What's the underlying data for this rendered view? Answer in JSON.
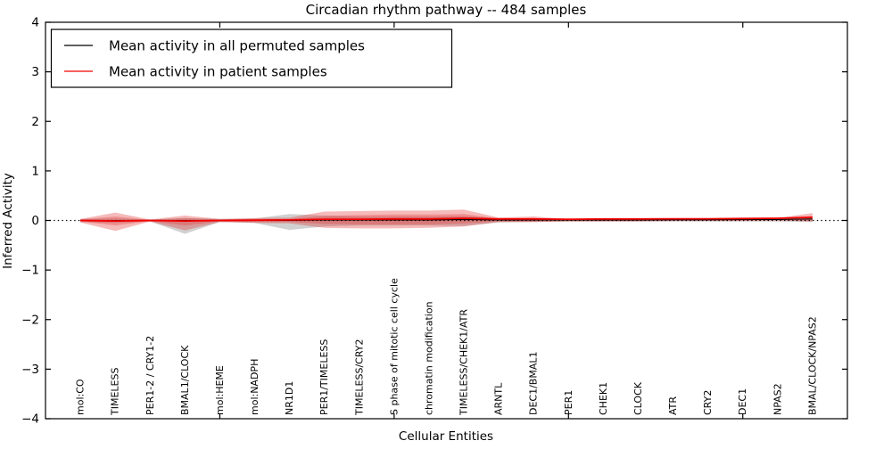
{
  "chart_data": {
    "type": "line",
    "title": "Circadian rhythm pathway -- 484 samples",
    "xlabel": "Cellular Entities",
    "ylabel": "Inferred Activity",
    "ylim": [
      -4,
      4
    ],
    "yticks": [
      -4,
      -3,
      -2,
      -1,
      0,
      1,
      2,
      3,
      4
    ],
    "xticks_numeric": [
      5,
      10,
      15,
      20
    ],
    "grid": false,
    "legend": {
      "position": "upper left",
      "items": [
        {
          "label": "Mean activity in all permuted samples",
          "color": "#000000"
        },
        {
          "label": "Mean activity in patient samples",
          "color": "#f20000"
        }
      ]
    },
    "categories": [
      "mol:CO",
      "TIMELESS",
      "PER1-2 / CRY1-2",
      "BMAL1/CLOCK",
      "mol:HEME",
      "mol:NADPH",
      "NR1D1",
      "PER1/TIMELESS",
      "TIMELESS/CRY2",
      "S phase of mitotic cell cycle",
      "chromatin modification",
      "TIMELESS/CHEK1/ATR",
      "ARNTL",
      "DEC1/BMAL1",
      "PER1",
      "CHEK1",
      "CLOCK",
      "ATR",
      "CRY2",
      "DEC1",
      "NPAS2",
      "BMAL/CLOCK/NPAS2"
    ],
    "series": [
      {
        "name": "Mean activity in all permuted samples",
        "color": "#000000",
        "width": 1.1,
        "values": [
          0,
          0,
          0,
          0,
          0,
          0,
          0,
          0.01,
          0.01,
          0.01,
          0.01,
          0.02,
          0.01,
          0.01,
          0.01,
          0.01,
          0.01,
          0.015,
          0.015,
          0.02,
          0.02,
          0.03
        ]
      },
      {
        "name": "Mean activity in patient samples",
        "color": "#f20000",
        "width": 1.8,
        "values": [
          0,
          -0.01,
          0,
          -0.01,
          0,
          0.005,
          0.01,
          0.025,
          0.025,
          0.03,
          0.03,
          0.045,
          0.03,
          0.03,
          0.025,
          0.03,
          0.03,
          0.035,
          0.035,
          0.04,
          0.045,
          0.065
        ]
      }
    ],
    "bands": [
      {
        "name": "permuted-std-band",
        "color": "#999999",
        "opacity": 0.45,
        "upper": [
          0.03,
          0.04,
          0.02,
          0.05,
          0.03,
          0.04,
          0.13,
          0.1,
          0.08,
          0.08,
          0.08,
          0.09,
          0.04,
          0.03,
          0.02,
          0.02,
          0.02,
          0.02,
          0.02,
          0.02,
          0.02,
          0.04
        ],
        "lower": [
          -0.03,
          -0.05,
          -0.02,
          -0.27,
          -0.03,
          -0.05,
          -0.19,
          -0.12,
          -0.1,
          -0.1,
          -0.1,
          -0.11,
          -0.04,
          -0.03,
          -0.02,
          -0.02,
          -0.02,
          -0.02,
          -0.02,
          -0.02,
          -0.02,
          -0.03
        ]
      },
      {
        "name": "patient-std-band",
        "color": "#e12d2d",
        "opacity": 0.33,
        "upper": [
          0.03,
          0.16,
          0.02,
          0.1,
          0.03,
          0.05,
          0.06,
          0.18,
          0.19,
          0.2,
          0.2,
          0.22,
          0.06,
          0.08,
          0.03,
          0.03,
          0.03,
          0.03,
          0.03,
          0.03,
          0.05,
          0.15
        ],
        "lower": [
          -0.04,
          -0.21,
          -0.02,
          -0.2,
          -0.03,
          -0.05,
          -0.06,
          -0.15,
          -0.16,
          -0.16,
          -0.15,
          -0.12,
          -0.03,
          -0.03,
          -0.02,
          -0.02,
          -0.02,
          -0.01,
          -0.01,
          -0.01,
          0.0,
          -0.02
        ]
      },
      {
        "name": "patient-inner-band",
        "color": "#e12d2d",
        "opacity": 0.3,
        "upper": [
          0.02,
          0.08,
          0.01,
          0.05,
          0.02,
          0.03,
          0.03,
          0.09,
          0.11,
          0.12,
          0.12,
          0.13,
          0.04,
          0.05,
          0.02,
          0.02,
          0.02,
          0.02,
          0.02,
          0.025,
          0.03,
          0.09
        ],
        "lower": [
          -0.02,
          -0.1,
          -0.01,
          -0.1,
          -0.02,
          -0.03,
          -0.03,
          -0.07,
          -0.08,
          -0.08,
          -0.08,
          -0.06,
          -0.02,
          -0.02,
          -0.01,
          -0.01,
          -0.01,
          -0.005,
          -0.005,
          -0.005,
          0.0,
          -0.01
        ]
      }
    ],
    "zero_line": {
      "value": 0,
      "style": "dotted",
      "color": "#000000"
    }
  }
}
